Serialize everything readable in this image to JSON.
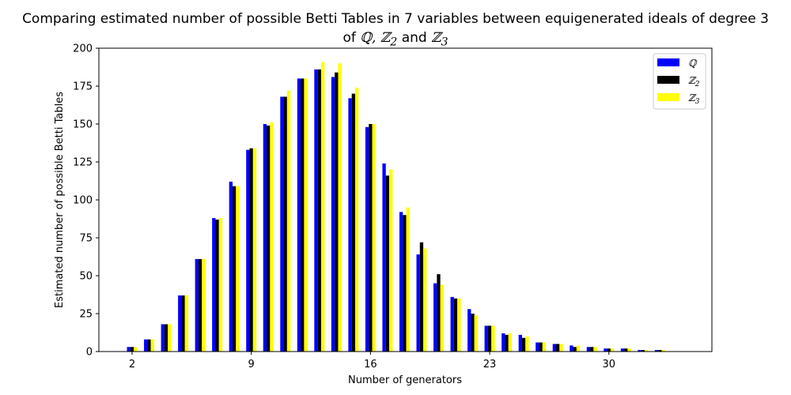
{
  "chart_data": {
    "type": "bar",
    "title_line1": "Comparing estimated number of possible Betti Tables in 7 variables between equigenerated ideals of degree 3",
    "title_line2_prefix": "of",
    "title_line2_q": "ℚ,",
    "title_line2_z2": "ℤ",
    "title_line2_z2_sub": "2",
    "title_line2_and": "and",
    "title_line2_z3": "ℤ",
    "title_line2_z3_sub": "3",
    "xlabel": "Number of generators",
    "ylabel": "Estimated number of  possible Betti Tables",
    "x": [
      2,
      3,
      4,
      5,
      6,
      7,
      8,
      9,
      10,
      11,
      12,
      13,
      14,
      15,
      16,
      17,
      18,
      19,
      20,
      21,
      22,
      23,
      24,
      25,
      26,
      27,
      28,
      29,
      30,
      31,
      32,
      33
    ],
    "series": [
      {
        "name": "ℚ",
        "name_sub": "",
        "color": "#0000ff",
        "values": [
          3,
          8,
          18,
          37,
          61,
          88,
          112,
          133,
          150,
          168,
          180,
          186,
          181,
          167,
          148,
          124,
          92,
          64,
          45,
          36,
          28,
          17,
          12,
          11,
          6,
          5,
          4,
          3,
          2,
          2,
          1,
          1
        ]
      },
      {
        "name": "ℤ",
        "name_sub": "2",
        "color": "#000000",
        "values": [
          3,
          8,
          18,
          37,
          61,
          87,
          109,
          134,
          149,
          168,
          180,
          186,
          184,
          170,
          150,
          116,
          90,
          72,
          51,
          35,
          25,
          17,
          11,
          9,
          6,
          5,
          3,
          3,
          2,
          2,
          1,
          1
        ]
      },
      {
        "name": "ℤ",
        "name_sub": "3",
        "color": "#ffff00",
        "values": [
          3,
          8,
          18,
          37,
          61,
          88,
          109,
          134,
          151,
          172,
          180,
          191,
          190,
          174,
          150,
          120,
          95,
          68,
          44,
          35,
          24,
          17,
          12,
          10,
          6,
          5,
          4,
          3,
          2,
          2,
          1,
          1
        ]
      }
    ],
    "xticks": [
      2,
      9,
      16,
      23,
      30
    ],
    "yticks": [
      0,
      25,
      50,
      75,
      100,
      125,
      150,
      175,
      200
    ],
    "xlim": [
      0.05,
      36.05
    ],
    "ylim": [
      0,
      200
    ],
    "grid": false,
    "legend_position": "top-right"
  }
}
